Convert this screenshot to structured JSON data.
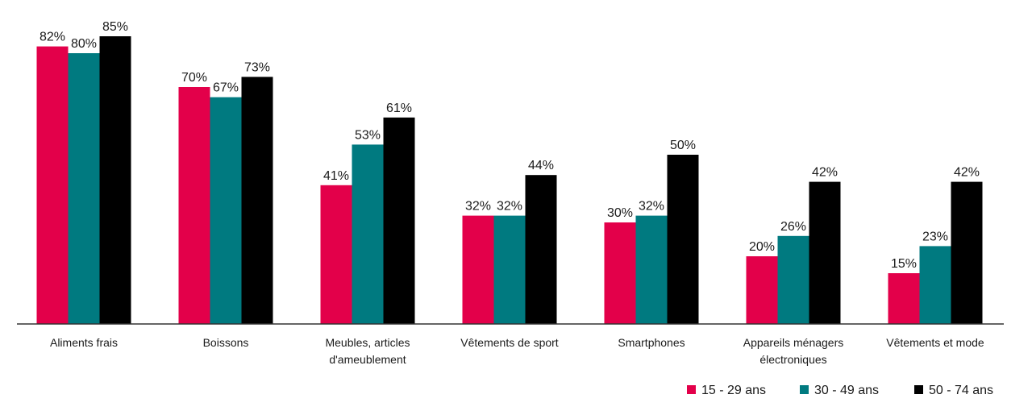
{
  "chart_data": {
    "type": "bar",
    "categories": [
      [
        "Aliments frais"
      ],
      [
        "Boissons"
      ],
      [
        "Meubles, articles",
        "d'ameublement"
      ],
      [
        "Vêtements de sport"
      ],
      [
        "Smartphones"
      ],
      [
        "Appareils ménagers",
        "électroniques"
      ],
      [
        "Vêtements et mode"
      ]
    ],
    "series": [
      {
        "name": "15 - 29 ans",
        "color": "#e3004a",
        "values": [
          82,
          70,
          41,
          32,
          30,
          20,
          15
        ]
      },
      {
        "name": "30 - 49 ans",
        "color": "#007a80",
        "values": [
          80,
          67,
          53,
          32,
          32,
          26,
          23
        ]
      },
      {
        "name": "50 - 74 ans",
        "color": "#000000",
        "values": [
          85,
          73,
          61,
          44,
          50,
          42,
          42
        ]
      }
    ],
    "value_suffix": "%",
    "ylim": [
      0,
      85
    ],
    "grid": false,
    "legend_position": "bottom-right"
  }
}
